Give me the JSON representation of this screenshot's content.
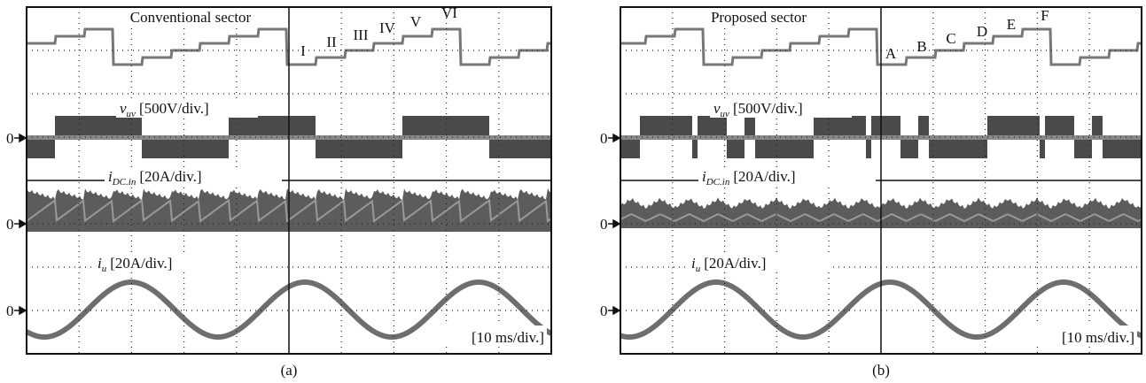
{
  "panels": [
    {
      "title": "Conventional sector",
      "sectors": [
        "I",
        "II",
        "III",
        "IV",
        "V",
        "VI"
      ],
      "labels": [
        {
          "symbol": "v",
          "sub": "uv",
          "scale": "[500V/div.]"
        },
        {
          "symbol": "i",
          "sub": "DC.in",
          "scale": "[20A/div.]"
        },
        {
          "symbol": "i",
          "sub": "u",
          "scale": "[20A/div.]"
        }
      ],
      "zero_marks": [
        "0",
        "0",
        "0"
      ],
      "time_scale": "[10 ms/div.]",
      "caption": "(a)"
    },
    {
      "title": "Proposed sector",
      "sectors": [
        "A",
        "B",
        "C",
        "D",
        "E",
        "F"
      ],
      "labels": [
        {
          "symbol": "v",
          "sub": "uv",
          "scale": "[500V/div.]"
        },
        {
          "symbol": "i",
          "sub": "DC.in",
          "scale": "[20A/div.]"
        },
        {
          "symbol": "i",
          "sub": "u",
          "scale": "[20A/div.]"
        }
      ],
      "zero_marks": [
        "0",
        "0",
        "0"
      ],
      "time_scale": "[10 ms/div.]",
      "caption": "(b)"
    }
  ]
}
